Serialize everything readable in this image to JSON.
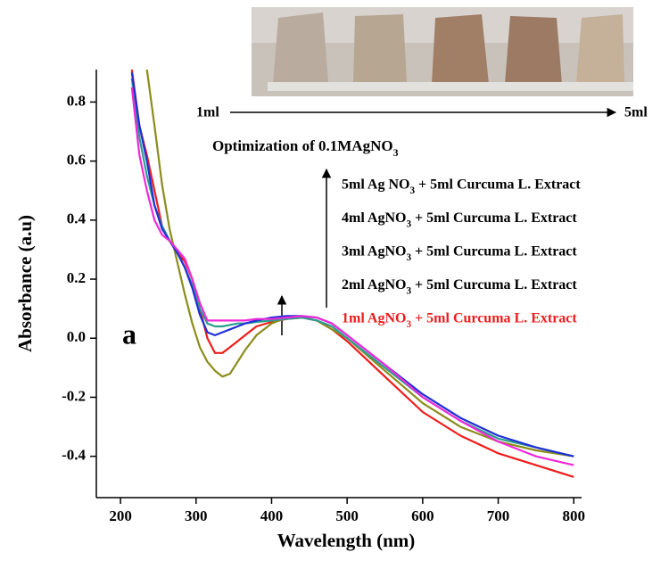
{
  "chart_data": {
    "type": "line",
    "xlabel": "Wavelength (nm)",
    "ylabel": "Absorbance (a.u)",
    "annotations": {
      "optimization": "Optimization of 0.1MAgNO3",
      "arrow_start": "1ml",
      "arrow_end": "5ml",
      "panel": "a"
    },
    "x": [
      215,
      225,
      235,
      245,
      255,
      265,
      275,
      285,
      295,
      305,
      315,
      325,
      335,
      345,
      355,
      365,
      380,
      400,
      420,
      440,
      460,
      480,
      500,
      550,
      600,
      650,
      700,
      750,
      800
    ],
    "series": [
      {
        "name": "1ml AgNO3 + 5ml Curcuma L. Extract",
        "color": "#ee1c1c",
        "label_color": "#ee1c1c",
        "values": [
          0.91,
          0.72,
          0.62,
          0.5,
          0.38,
          0.33,
          0.29,
          0.26,
          0.2,
          0.1,
          0.0,
          -0.05,
          -0.05,
          -0.03,
          -0.01,
          0.01,
          0.04,
          0.055,
          0.065,
          0.07,
          0.06,
          0.03,
          -0.01,
          -0.13,
          -0.25,
          -0.33,
          -0.39,
          -0.43,
          -0.47
        ]
      },
      {
        "name": "2ml AgNO3 + 5ml Curcuma L. Extract",
        "color": "#8c8c1a",
        "label_color": "#000000",
        "values": [
          null,
          null,
          0.91,
          0.72,
          0.52,
          0.37,
          0.26,
          0.15,
          0.05,
          -0.03,
          -0.08,
          -0.11,
          -0.13,
          -0.12,
          -0.08,
          -0.04,
          0.01,
          0.05,
          0.07,
          0.07,
          0.06,
          0.03,
          0.0,
          -0.11,
          -0.22,
          -0.3,
          -0.35,
          -0.38,
          -0.4
        ]
      },
      {
        "name": "3ml AgNO3 + 5ml Curcuma L. Extract",
        "color": "#2a9d8f",
        "label_color": "#000000",
        "values": [
          0.88,
          0.68,
          0.55,
          0.45,
          0.38,
          0.33,
          0.29,
          0.24,
          0.18,
          0.1,
          0.05,
          0.04,
          0.04,
          0.045,
          0.05,
          0.05,
          0.055,
          0.06,
          0.065,
          0.07,
          0.06,
          0.04,
          0.0,
          -0.1,
          -0.2,
          -0.28,
          -0.34,
          -0.37,
          -0.4
        ]
      },
      {
        "name": "4ml AgNO3 + 5ml Curcuma L. Extract",
        "color": "#1f2fd6",
        "label_color": "#000000",
        "values": [
          0.9,
          0.72,
          0.6,
          0.45,
          0.37,
          0.33,
          0.29,
          0.24,
          0.17,
          0.08,
          0.02,
          0.01,
          0.02,
          0.03,
          0.04,
          0.05,
          0.06,
          0.07,
          0.075,
          0.075,
          0.07,
          0.05,
          0.01,
          -0.09,
          -0.19,
          -0.27,
          -0.33,
          -0.37,
          -0.4
        ]
      },
      {
        "name": "5ml Ag NO3 + 5ml Curcuma L. Extract",
        "color": "#ee2ad8",
        "label_color": "#000000",
        "values": [
          0.85,
          0.62,
          0.5,
          0.4,
          0.35,
          0.33,
          0.3,
          0.27,
          0.2,
          0.12,
          0.06,
          0.06,
          0.06,
          0.06,
          0.06,
          0.06,
          0.065,
          0.065,
          0.07,
          0.075,
          0.07,
          0.05,
          0.01,
          -0.09,
          -0.2,
          -0.28,
          -0.35,
          -0.4,
          -0.43
        ]
      }
    ],
    "xlim": [
      168,
      808
    ],
    "ylim": [
      -0.54,
      0.91
    ],
    "xticks": [
      200,
      300,
      400,
      500,
      600,
      700,
      800
    ],
    "yticks": [
      -0.4,
      -0.2,
      {
        "value": 0,
        "label": "0.0"
      },
      0.2,
      0.4,
      0.6,
      0.8
    ],
    "grid": false
  }
}
